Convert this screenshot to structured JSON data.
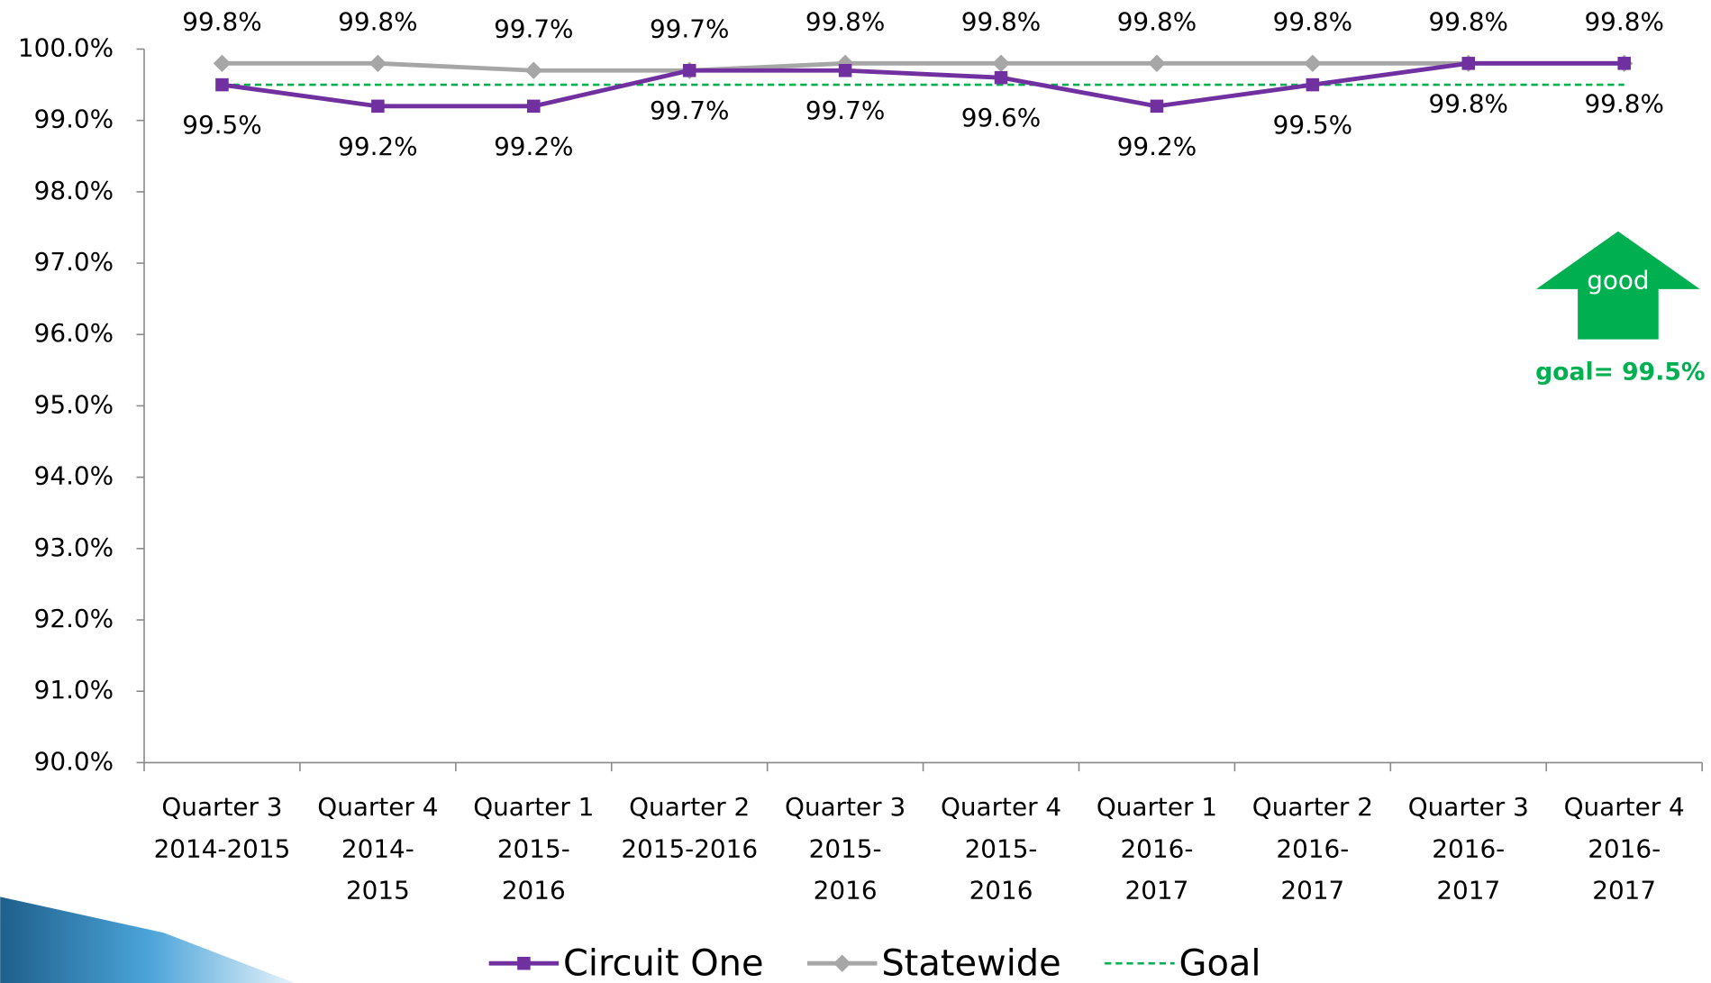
{
  "chart_data": {
    "type": "line",
    "categories": [
      [
        "Quarter 3",
        "2014-2015"
      ],
      [
        "Quarter 4",
        "2014-",
        "2015"
      ],
      [
        "Quarter 1",
        "2015-",
        "2016"
      ],
      [
        "Quarter 2",
        "2015-2016"
      ],
      [
        "Quarter 3",
        "2015-",
        "2016"
      ],
      [
        "Quarter 4",
        "2015-",
        "2016"
      ],
      [
        "Quarter 1",
        "2016-",
        "2017"
      ],
      [
        "Quarter 2",
        "2016-",
        "2017"
      ],
      [
        "Quarter 3",
        "2016-",
        "2017"
      ],
      [
        "Quarter 4",
        "2016-",
        "2017"
      ]
    ],
    "series": [
      {
        "name": "Circuit One",
        "color": "#7030a0",
        "marker": "square",
        "label_position": "below",
        "values": [
          99.5,
          99.2,
          99.2,
          99.7,
          99.7,
          99.6,
          99.2,
          99.5,
          99.8,
          99.8
        ],
        "value_labels": [
          "99.5%",
          "99.2%",
          "99.2%",
          "99.7%",
          "99.7%",
          "99.6%",
          "99.2%",
          "99.5%",
          "99.8%",
          "99.8%"
        ]
      },
      {
        "name": "Statewide",
        "color": "#a6a6a6",
        "marker": "diamond",
        "label_position": "above",
        "values": [
          99.8,
          99.8,
          99.7,
          99.7,
          99.8,
          99.8,
          99.8,
          99.8,
          99.8,
          99.8
        ],
        "value_labels": [
          "99.8%",
          "99.8%",
          "99.7%",
          "99.7%",
          "99.8%",
          "99.8%",
          "99.8%",
          "99.8%",
          "99.8%",
          "99.8%"
        ]
      },
      {
        "name": "Goal",
        "color": "#00b050",
        "dashed": true,
        "values": [
          99.5,
          99.5,
          99.5,
          99.5,
          99.5,
          99.5,
          99.5,
          99.5,
          99.5,
          99.5
        ]
      }
    ],
    "ylim": [
      90,
      100
    ],
    "yticks": [
      {
        "value": 90,
        "label": "90.0%"
      },
      {
        "value": 91,
        "label": "91.0%"
      },
      {
        "value": 92,
        "label": "92.0%"
      },
      {
        "value": 93,
        "label": "93.0%"
      },
      {
        "value": 94,
        "label": "94.0%"
      },
      {
        "value": 95,
        "label": "95.0%"
      },
      {
        "value": 96,
        "label": "96.0%"
      },
      {
        "value": 97,
        "label": "97.0%"
      },
      {
        "value": 98,
        "label": "98.0%"
      },
      {
        "value": 99,
        "label": "99.0%"
      },
      {
        "value": 100,
        "label": "100.0%"
      }
    ],
    "annotations": {
      "arrow_text": "good",
      "goal_text": "goal= 99.5%"
    },
    "legend": "bottom"
  }
}
